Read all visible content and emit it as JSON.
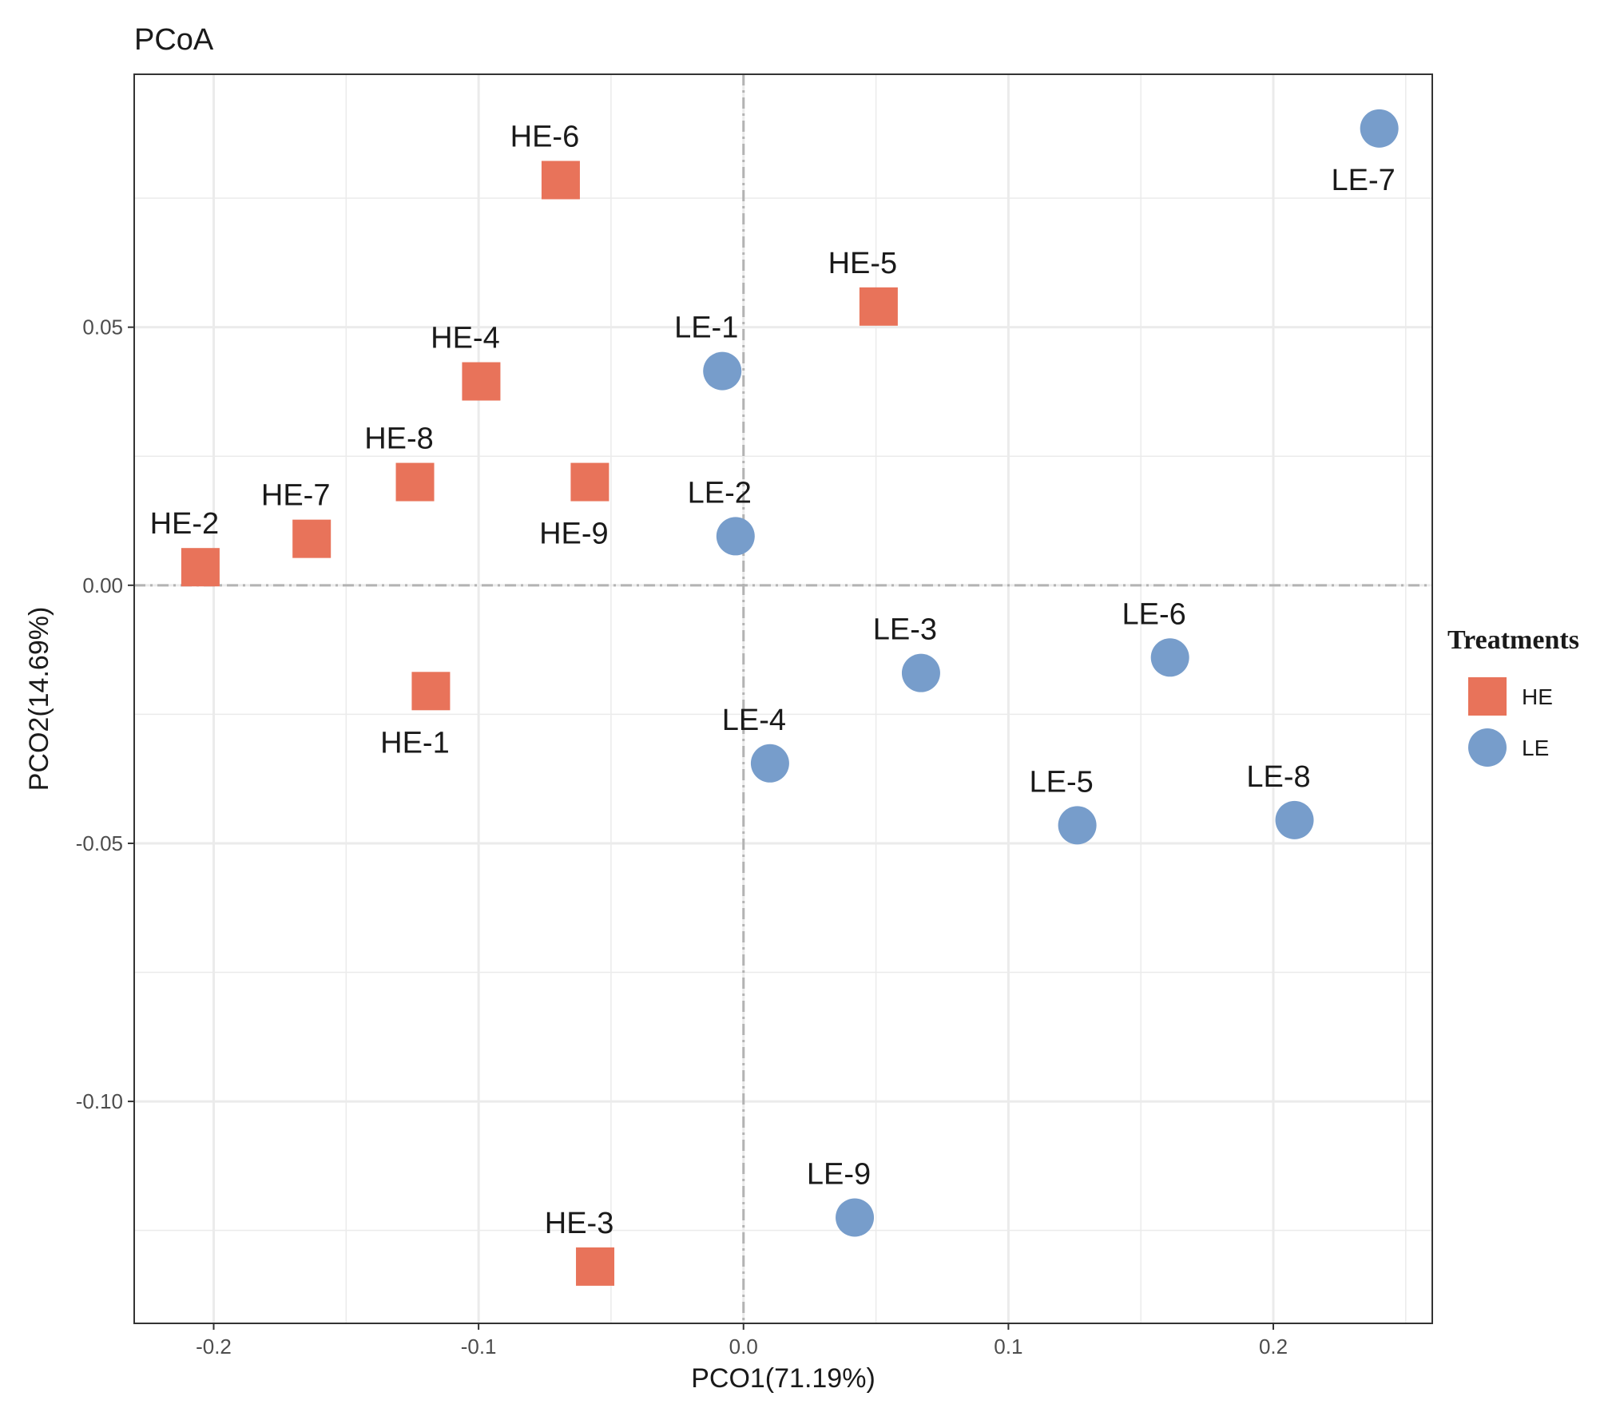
{
  "chart_data": {
    "type": "scatter",
    "title": "PCoA",
    "xlabel": "PCO1(71.19%)",
    "ylabel": "PCO2(14.69%)",
    "xlim": [
      -0.23,
      0.26
    ],
    "ylim": [
      -0.143,
      0.099
    ],
    "xticks": [
      -0.2,
      -0.1,
      0.0,
      0.1,
      0.2
    ],
    "xtick_labels": [
      "-0.2",
      "-0.1",
      "0.0",
      "0.1",
      "0.2"
    ],
    "yticks": [
      -0.1,
      -0.05,
      0.0,
      0.05
    ],
    "ytick_labels": [
      "-0.10",
      "-0.05",
      "0.00",
      "0.05"
    ],
    "grid": true,
    "reference_lines": {
      "x": 0,
      "y": 0
    },
    "legend": {
      "title": "Treatments",
      "position": "right",
      "entries": [
        {
          "name": "HE",
          "shape": "square",
          "color": "#E8735A"
        },
        {
          "name": "LE",
          "shape": "circle",
          "color": "#779DCB"
        }
      ]
    },
    "series": [
      {
        "name": "HE",
        "shape": "square",
        "color": "#E8735A",
        "points": [
          {
            "label": "HE-1",
            "x": -0.118,
            "y": -0.0205,
            "label_pos": "below"
          },
          {
            "label": "HE-2",
            "x": -0.205,
            "y": 0.0035,
            "label_pos": "above"
          },
          {
            "label": "HE-3",
            "x": -0.056,
            "y": -0.132,
            "label_pos": "above"
          },
          {
            "label": "HE-4",
            "x": -0.099,
            "y": 0.0395,
            "label_pos": "above"
          },
          {
            "label": "HE-5",
            "x": 0.051,
            "y": 0.054,
            "label_pos": "above"
          },
          {
            "label": "HE-6",
            "x": -0.069,
            "y": 0.0785,
            "label_pos": "above"
          },
          {
            "label": "HE-7",
            "x": -0.163,
            "y": 0.009,
            "label_pos": "above"
          },
          {
            "label": "HE-8",
            "x": -0.124,
            "y": 0.02,
            "label_pos": "above"
          },
          {
            "label": "HE-9",
            "x": -0.058,
            "y": 0.02,
            "label_pos": "below"
          }
        ]
      },
      {
        "name": "LE",
        "shape": "circle",
        "color": "#779DCB",
        "points": [
          {
            "label": "LE-1",
            "x": -0.008,
            "y": 0.0415,
            "label_pos": "above"
          },
          {
            "label": "LE-2",
            "x": -0.003,
            "y": 0.0095,
            "label_pos": "above"
          },
          {
            "label": "LE-3",
            "x": 0.067,
            "y": -0.017,
            "label_pos": "above"
          },
          {
            "label": "LE-4",
            "x": 0.01,
            "y": -0.0345,
            "label_pos": "above"
          },
          {
            "label": "LE-5",
            "x": 0.126,
            "y": -0.0465,
            "label_pos": "above"
          },
          {
            "label": "LE-6",
            "x": 0.161,
            "y": -0.014,
            "label_pos": "above"
          },
          {
            "label": "LE-7",
            "x": 0.24,
            "y": 0.0885,
            "label_pos": "below"
          },
          {
            "label": "LE-8",
            "x": 0.208,
            "y": -0.0455,
            "label_pos": "above"
          },
          {
            "label": "LE-9",
            "x": 0.042,
            "y": -0.1225,
            "label_pos": "above"
          }
        ]
      }
    ]
  }
}
